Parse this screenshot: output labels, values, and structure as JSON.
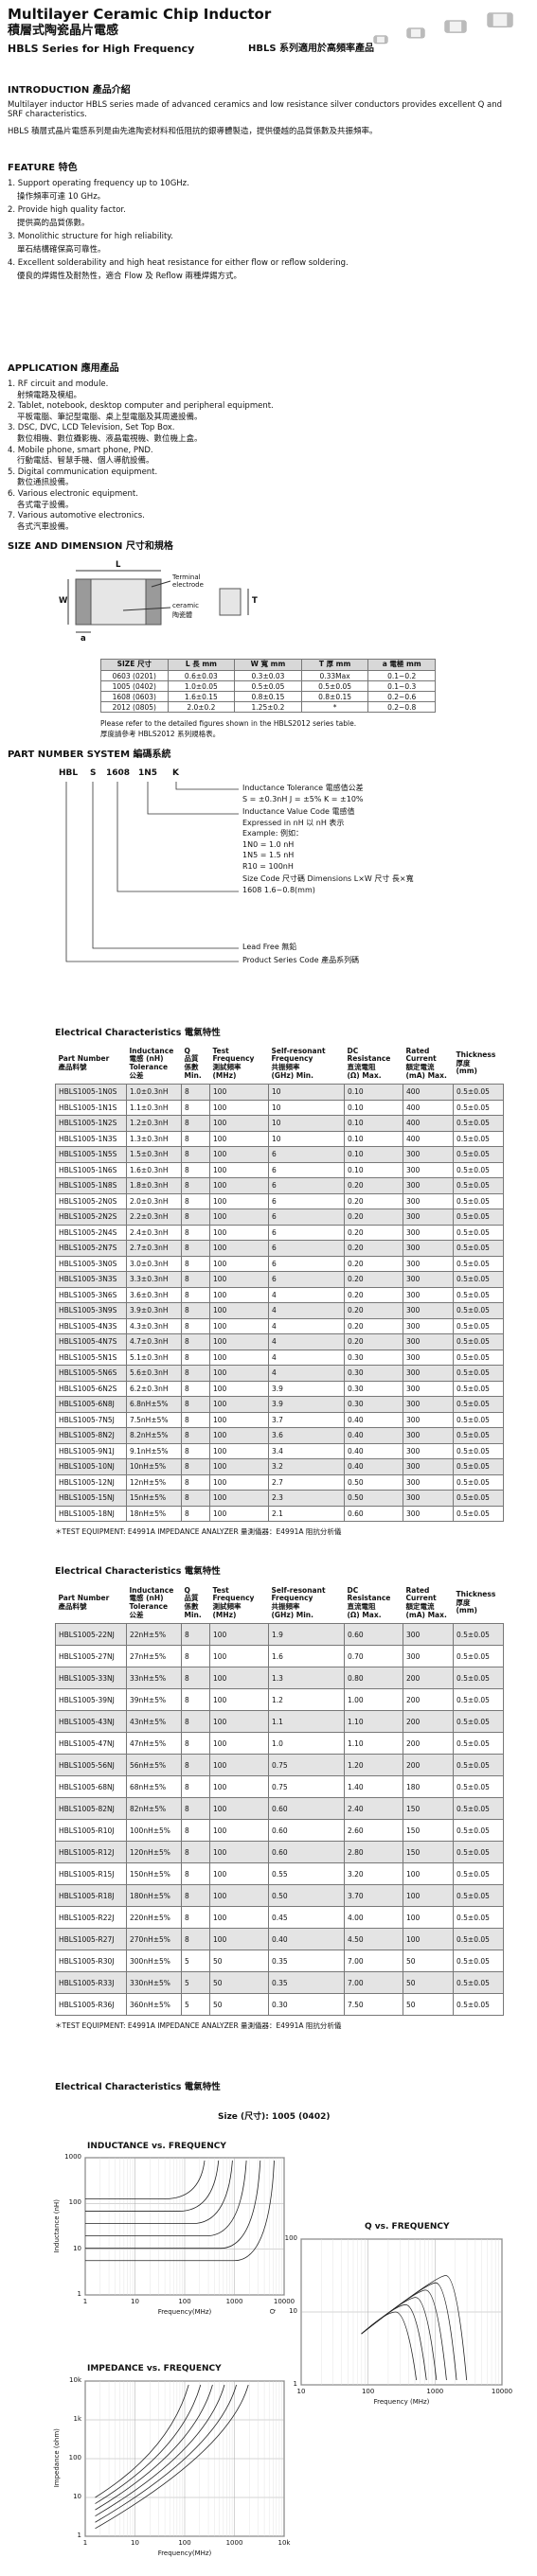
{
  "header": {
    "title": "Multilayer Ceramic Chip Inductor",
    "title_zh": "積層式陶瓷晶片電感",
    "subtitle": "HBLS Series for High Frequency",
    "subtitle_zh": "HBLS 系列適用於高頻率產品"
  },
  "intro": {
    "heading": "INTRODUCTION 產品介紹",
    "text_en": "Multilayer inductor HBLS series made of advanced ceramics and low resistance silver conductors provides excellent Q and SRF characteristics.",
    "text_zh": "HBLS 積層式晶片電感系列是由先進陶瓷材料和低阻抗的銀導體製造，提供優越的品質係數及共振頻率。"
  },
  "feature": {
    "heading": "FEATURE 特色",
    "items": [
      {
        "en": "1. Support operating frequency up to 10GHz.",
        "zh": "操作頻率可達 10 GHz。"
      },
      {
        "en": "2. Provide high quality factor.",
        "zh": "提供高的品質係數。"
      },
      {
        "en": "3. Monolithic structure for high reliability.",
        "zh": "單石結構確保高可靠性。"
      },
      {
        "en": "4. Excellent solderability and high heat resistance for either flow or reflow soldering.",
        "zh": "優良的焊錫性及耐熱性，適合 Flow 及 Reflow 兩種焊錫方式。"
      }
    ]
  },
  "application": {
    "heading": "APPLICATION 應用產品",
    "items": [
      {
        "en": "1. RF circuit and module.",
        "zh": "射頻電路及模組。"
      },
      {
        "en": "2. Tablet, notebook, desktop computer and peripheral equipment.",
        "zh": "平板電腦、筆記型電腦、桌上型電腦及其周邊設備。"
      },
      {
        "en": "3. DSC, DVC, LCD Television, Set Top Box.",
        "zh": "數位相機、數位攝影機、液晶電視機、數位機上盒。"
      },
      {
        "en": "4. Mobile phone, smart phone, PND.",
        "zh": "行動電話、智慧手機、個人導航設備。"
      },
      {
        "en": "5. Digital communication equipment.",
        "zh": "數位通訊設備。"
      },
      {
        "en": "6. Various electronic equipment.",
        "zh": "各式電子設備。"
      },
      {
        "en": "7. Various automotive electronics.",
        "zh": "各式汽車設備。"
      }
    ]
  },
  "size": {
    "heading": "SIZE AND DIMENSION 尺寸和規格",
    "diagram": {
      "L": "L",
      "W": "W",
      "T": "T",
      "a": "a",
      "terminal": "Terminal\nelectrode",
      "ceramic": "ceramic",
      "ceramic_zh": "陶瓷體"
    },
    "table": {
      "header": [
        "SIZE 尺寸",
        "L 長 mm",
        "W 寬 mm",
        "T 厚 mm",
        "a 電極 mm"
      ],
      "rows": [
        [
          "0603 (0201)",
          "0.6±0.03",
          "0.3±0.03",
          "0.33Max",
          "0.1~0.2"
        ],
        [
          "1005 (0402)",
          "1.0±0.05",
          "0.5±0.05",
          "0.5±0.05",
          "0.1~0.3"
        ],
        [
          "1608 (0603)",
          "1.6±0.15",
          "0.8±0.15",
          "0.8±0.15",
          "0.2~0.6"
        ],
        [
          "2012 (0805)",
          "2.0±0.2",
          "1.25±0.2",
          "*",
          "0.2~0.8"
        ]
      ]
    },
    "notes": [
      "Please refer to the detailed figures shown in the HBLS2012 series table.",
      "厚度請參考 HBLS2012 系列規格表。"
    ]
  },
  "part_number": {
    "heading": "PART NUMBER SYSTEM 編碼系統",
    "code": [
      "HBL",
      "S",
      "1608",
      "1N5",
      "K"
    ],
    "tolerance": [
      "Inductance Tolerance 電感值公差",
      "S = ±0.3nH   J = ±5%   K = ±10%"
    ],
    "value": [
      "Inductance Value Code 電感值",
      "Expressed in nH 以 nH 表示",
      "Example: 例如：",
      "1N0 = 1.0 nH",
      "1N5 = 1.5 nH",
      "R10 = 100nH"
    ],
    "size": [
      "Size Code 尺寸碼   Dimensions L×W 尺寸 長×寬",
      "1608  1.6~0.8(mm)"
    ],
    "lead": "Lead Free 無鉛",
    "series": "Product Series Code 產品系列碼"
  },
  "electrical_1": {
    "title": "Electrical Characteristics 電氣特性",
    "header": [
      "Part Number\n產品料號",
      "Inductance\n電感 (nH)\nTolerance\n公差",
      "Q\n品質\n係數\nMin.",
      "Test\nFrequency\n測試頻率\n(MHz)",
      "Self-resonant\nFrequency\n共振頻率\n(GHz) Min.",
      "DC\nResistance\n直流電阻\n(Ω) Max.",
      "Rated\nCurrent\n額定電流\n(mA) Max.",
      "Thickness\n厚度\n(mm)"
    ],
    "rows": [
      [
        "HBLS1005-1N0S",
        "1.0±0.3nH",
        "8",
        "100",
        "10",
        "0.10",
        "400",
        "0.5±0.05"
      ],
      [
        "HBLS1005-1N1S",
        "1.1±0.3nH",
        "8",
        "100",
        "10",
        "0.10",
        "400",
        "0.5±0.05"
      ],
      [
        "HBLS1005-1N2S",
        "1.2±0.3nH",
        "8",
        "100",
        "10",
        "0.10",
        "400",
        "0.5±0.05"
      ],
      [
        "HBLS1005-1N3S",
        "1.3±0.3nH",
        "8",
        "100",
        "10",
        "0.10",
        "400",
        "0.5±0.05"
      ],
      [
        "HBLS1005-1N5S",
        "1.5±0.3nH",
        "8",
        "100",
        "6",
        "0.10",
        "300",
        "0.5±0.05"
      ],
      [
        "HBLS1005-1N6S",
        "1.6±0.3nH",
        "8",
        "100",
        "6",
        "0.10",
        "300",
        "0.5±0.05"
      ],
      [
        "HBLS1005-1N8S",
        "1.8±0.3nH",
        "8",
        "100",
        "6",
        "0.20",
        "300",
        "0.5±0.05"
      ],
      [
        "HBLS1005-2N0S",
        "2.0±0.3nH",
        "8",
        "100",
        "6",
        "0.20",
        "300",
        "0.5±0.05"
      ],
      [
        "HBLS1005-2N2S",
        "2.2±0.3nH",
        "8",
        "100",
        "6",
        "0.20",
        "300",
        "0.5±0.05"
      ],
      [
        "HBLS1005-2N4S",
        "2.4±0.3nH",
        "8",
        "100",
        "6",
        "0.20",
        "300",
        "0.5±0.05"
      ],
      [
        "HBLS1005-2N7S",
        "2.7±0.3nH",
        "8",
        "100",
        "6",
        "0.20",
        "300",
        "0.5±0.05"
      ],
      [
        "HBLS1005-3N0S",
        "3.0±0.3nH",
        "8",
        "100",
        "6",
        "0.20",
        "300",
        "0.5±0.05"
      ],
      [
        "HBLS1005-3N3S",
        "3.3±0.3nH",
        "8",
        "100",
        "6",
        "0.20",
        "300",
        "0.5±0.05"
      ],
      [
        "HBLS1005-3N6S",
        "3.6±0.3nH",
        "8",
        "100",
        "4",
        "0.20",
        "300",
        "0.5±0.05"
      ],
      [
        "HBLS1005-3N9S",
        "3.9±0.3nH",
        "8",
        "100",
        "4",
        "0.20",
        "300",
        "0.5±0.05"
      ],
      [
        "HBLS1005-4N3S",
        "4.3±0.3nH",
        "8",
        "100",
        "4",
        "0.20",
        "300",
        "0.5±0.05"
      ],
      [
        "HBLS1005-4N7S",
        "4.7±0.3nH",
        "8",
        "100",
        "4",
        "0.20",
        "300",
        "0.5±0.05"
      ],
      [
        "HBLS1005-5N1S",
        "5.1±0.3nH",
        "8",
        "100",
        "4",
        "0.30",
        "300",
        "0.5±0.05"
      ],
      [
        "HBLS1005-5N6S",
        "5.6±0.3nH",
        "8",
        "100",
        "4",
        "0.30",
        "300",
        "0.5±0.05"
      ],
      [
        "HBLS1005-6N2S",
        "6.2±0.3nH",
        "8",
        "100",
        "3.9",
        "0.30",
        "300",
        "0.5±0.05"
      ],
      [
        "HBLS1005-6N8J",
        "6.8nH±5%",
        "8",
        "100",
        "3.9",
        "0.30",
        "300",
        "0.5±0.05"
      ],
      [
        "HBLS1005-7N5J",
        "7.5nH±5%",
        "8",
        "100",
        "3.7",
        "0.40",
        "300",
        "0.5±0.05"
      ],
      [
        "HBLS1005-8N2J",
        "8.2nH±5%",
        "8",
        "100",
        "3.6",
        "0.40",
        "300",
        "0.5±0.05"
      ],
      [
        "HBLS1005-9N1J",
        "9.1nH±5%",
        "8",
        "100",
        "3.4",
        "0.40",
        "300",
        "0.5±0.05"
      ],
      [
        "HBLS1005-10NJ",
        "10nH±5%",
        "8",
        "100",
        "3.2",
        "0.40",
        "300",
        "0.5±0.05"
      ],
      [
        "HBLS1005-12NJ",
        "12nH±5%",
        "8",
        "100",
        "2.7",
        "0.50",
        "300",
        "0.5±0.05"
      ],
      [
        "HBLS1005-15NJ",
        "15nH±5%",
        "8",
        "100",
        "2.3",
        "0.50",
        "300",
        "0.5±0.05"
      ],
      [
        "HBLS1005-18NJ",
        "18nH±5%",
        "8",
        "100",
        "2.1",
        "0.60",
        "300",
        "0.5±0.05"
      ]
    ],
    "note": "＊TEST EQUIPMENT: E4991A IMPEDANCE ANALYZER     量測儀器：E4991A 阻抗分析儀"
  },
  "electrical_2": {
    "title": "Electrical Characteristics 電氣特性",
    "header": [
      "Part Number\n產品料號",
      "Inductance\n電感 (nH)\nTolerance\n公差",
      "Q\n品質\n係數\nMin.",
      "Test\nFrequency\n測試頻率\n(MHz)",
      "Self-resonant\nFrequency\n共振頻率\n(GHz) Min.",
      "DC\nResistance\n直流電阻\n(Ω) Max.",
      "Rated\nCurrent\n額定電流\n(mA) Max.",
      "Thickness\n厚度\n(mm)"
    ],
    "rows": [
      [
        "HBLS1005-22NJ",
        "22nH±5%",
        "8",
        "100",
        "1.9",
        "0.60",
        "300",
        "0.5±0.05"
      ],
      [
        "HBLS1005-27NJ",
        "27nH±5%",
        "8",
        "100",
        "1.6",
        "0.70",
        "300",
        "0.5±0.05"
      ],
      [
        "HBLS1005-33NJ",
        "33nH±5%",
        "8",
        "100",
        "1.3",
        "0.80",
        "200",
        "0.5±0.05"
      ],
      [
        "HBLS1005-39NJ",
        "39nH±5%",
        "8",
        "100",
        "1.2",
        "1.00",
        "200",
        "0.5±0.05"
      ],
      [
        "HBLS1005-43NJ",
        "43nH±5%",
        "8",
        "100",
        "1.1",
        "1.10",
        "200",
        "0.5±0.05"
      ],
      [
        "HBLS1005-47NJ",
        "47nH±5%",
        "8",
        "100",
        "1.0",
        "1.10",
        "200",
        "0.5±0.05"
      ],
      [
        "HBLS1005-56NJ",
        "56nH±5%",
        "8",
        "100",
        "0.75",
        "1.20",
        "200",
        "0.5±0.05"
      ],
      [
        "HBLS1005-68NJ",
        "68nH±5%",
        "8",
        "100",
        "0.75",
        "1.40",
        "180",
        "0.5±0.05"
      ],
      [
        "HBLS1005-82NJ",
        "82nH±5%",
        "8",
        "100",
        "0.60",
        "2.40",
        "150",
        "0.5±0.05"
      ],
      [
        "HBLS1005-R10J",
        "100nH±5%",
        "8",
        "100",
        "0.60",
        "2.60",
        "150",
        "0.5±0.05"
      ],
      [
        "HBLS1005-R12J",
        "120nH±5%",
        "8",
        "100",
        "0.60",
        "2.80",
        "150",
        "0.5±0.05"
      ],
      [
        "HBLS1005-R15J",
        "150nH±5%",
        "8",
        "100",
        "0.55",
        "3.20",
        "100",
        "0.5±0.05"
      ],
      [
        "HBLS1005-R18J",
        "180nH±5%",
        "8",
        "100",
        "0.50",
        "3.70",
        "100",
        "0.5±0.05"
      ],
      [
        "HBLS1005-R22J",
        "220nH±5%",
        "8",
        "100",
        "0.45",
        "4.00",
        "100",
        "0.5±0.05"
      ],
      [
        "HBLS1005-R27J",
        "270nH±5%",
        "8",
        "100",
        "0.40",
        "4.50",
        "100",
        "0.5±0.05"
      ],
      [
        "HBLS1005-R30J",
        "300nH±5%",
        "5",
        "50",
        "0.35",
        "7.00",
        "50",
        "0.5±0.05"
      ],
      [
        "HBLS1005-R33J",
        "330nH±5%",
        "5",
        "50",
        "0.35",
        "7.00",
        "50",
        "0.5±0.05"
      ],
      [
        "HBLS1005-R36J",
        "360nH±5%",
        "5",
        "50",
        "0.30",
        "7.50",
        "50",
        "0.5±0.05"
      ]
    ],
    "note": "＊TEST EQUIPMENT: E4991A IMPEDANCE ANALYZER     量測儀器：E4991A 阻抗分析儀"
  },
  "curves": {
    "title": "Electrical Characteristics 電氣特性",
    "size": "Size (尺寸): 1005 (0402)",
    "charts": [
      {
        "title": "INDUCTANCE vs. FREQUENCY",
        "ylabel": "Inductance (nH)",
        "xlabel": "Frequency(MHz)",
        "yticks": [
          "1000",
          "100",
          "10",
          "1"
        ],
        "xticks": [
          "1",
          "10",
          "100",
          "1000",
          "10000"
        ]
      },
      {
        "title": "Q vs. FREQUENCY",
        "ylabel": "Q",
        "xlabel": "Frequency (MHz)",
        "yticks": [
          "100",
          "10",
          "1"
        ],
        "xticks": [
          "10",
          "100",
          "1000",
          "10000"
        ]
      },
      {
        "title": "IMPEDANCE vs. FREQUENCY",
        "ylabel": "Impedance (ohm)",
        "xlabel": "Frequency(MHz)",
        "yticks": [
          "10k",
          "1k",
          "100",
          "10",
          "1"
        ],
        "xticks": [
          "1",
          "10",
          "100",
          "1000",
          "10k"
        ]
      }
    ]
  }
}
